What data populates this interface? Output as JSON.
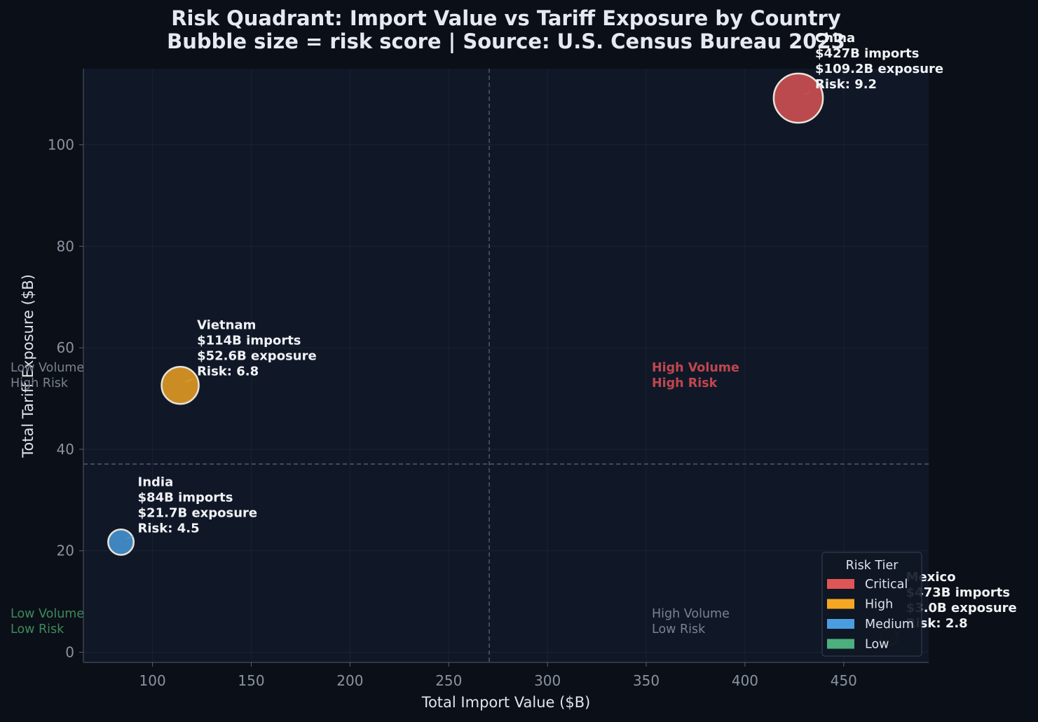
{
  "colors": {
    "background": "#0b0f17",
    "plot_background": "#101828",
    "critical": "#e05555",
    "high": "#f5a623",
    "medium": "#4a9ee0",
    "low": "#4caf7d",
    "grid": "#1a2233",
    "divider": "#4f5a6b"
  },
  "chart_data": {
    "type": "scatter",
    "title_line1": "Risk Quadrant: Import Value vs Tariff Exposure by Country",
    "title_line2": "Bubble size = risk score  |  Source: U.S. Census Bureau 2023",
    "xlabel": "Total Import Value ($B)",
    "ylabel": "Total Tariff Exposure ($B)",
    "xlim": [
      65,
      493
    ],
    "ylim": [
      -2,
      115
    ],
    "xticks": [
      100,
      150,
      200,
      250,
      300,
      350,
      400,
      450
    ],
    "yticks": [
      0,
      20,
      40,
      60,
      80,
      100
    ],
    "grid": true,
    "dividers": {
      "x": 270.5,
      "y": 37.1
    },
    "series": [
      {
        "country": "China",
        "x": 427,
        "y": 109.2,
        "risk": 9.2,
        "tier": "critical",
        "label_lines": [
          "China",
          "$427B imports",
          "$109.2B exposure",
          "Risk: 9.2"
        ]
      },
      {
        "country": "Vietnam",
        "x": 114,
        "y": 52.6,
        "risk": 6.8,
        "tier": "high",
        "label_lines": [
          "Vietnam",
          "$114B imports",
          "$52.6B exposure",
          "Risk: 6.8"
        ]
      },
      {
        "country": "India",
        "x": 84,
        "y": 21.7,
        "risk": 4.5,
        "tier": "medium",
        "label_lines": [
          "India",
          "$84B imports",
          "$21.7B exposure",
          "Risk: 4.5"
        ]
      },
      {
        "country": "Mexico",
        "x": 473,
        "y": 3.0,
        "risk": 2.8,
        "tier": "low",
        "label_lines": [
          "Mexico",
          "$473B imports",
          "$3.0B exposure",
          "Risk: 2.8"
        ]
      }
    ],
    "quadrant_labels": [
      {
        "lines": [
          "Low Volume",
          "High Risk"
        ],
        "color": "#7a8290"
      },
      {
        "lines": [
          "High Volume",
          "High Risk"
        ],
        "color": "#c0464e"
      },
      {
        "lines": [
          "Low Volume",
          "Low Risk"
        ],
        "color": "#3d8a5c"
      },
      {
        "lines": [
          "High Volume",
          "Low Risk"
        ],
        "color": "#7a8290"
      }
    ],
    "legend": {
      "title": "Risk Tier",
      "position": "lower-right",
      "items": [
        {
          "label": "Critical",
          "tier": "critical"
        },
        {
          "label": "High",
          "tier": "high"
        },
        {
          "label": "Medium",
          "tier": "medium"
        },
        {
          "label": "Low",
          "tier": "low"
        }
      ]
    }
  }
}
